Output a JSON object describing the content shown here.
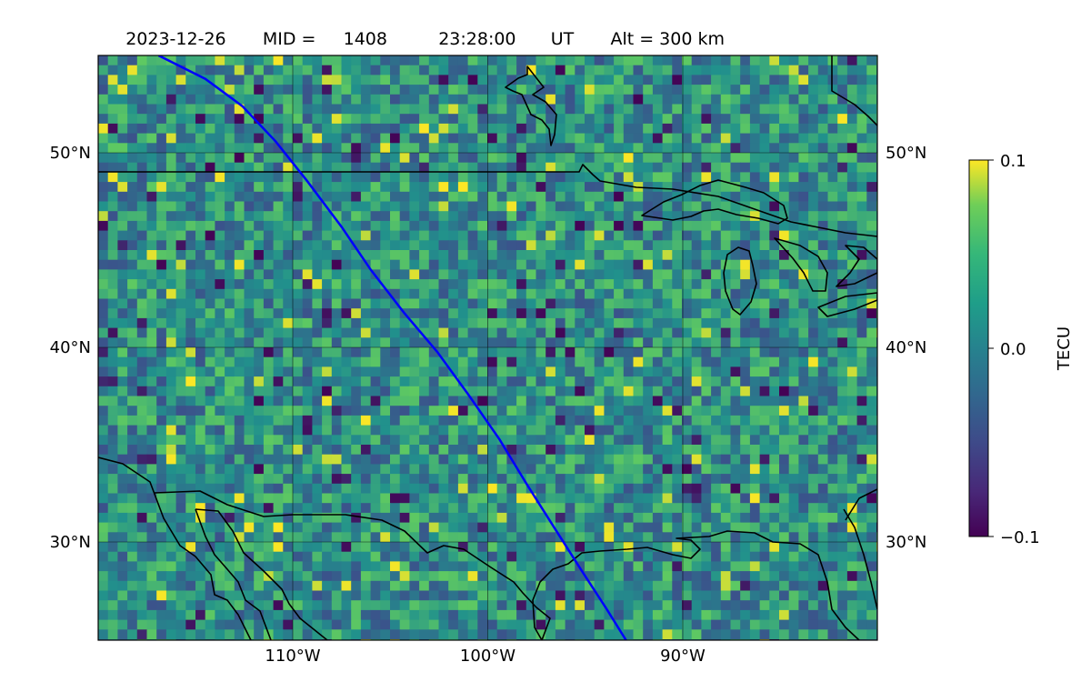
{
  "title": {
    "date": "2023-12-26",
    "mid_label": "MID =",
    "mid_value": "1408",
    "time": "23:28:00",
    "time_zone": "UT",
    "alt_label": "Alt = 300 km"
  },
  "map": {
    "projection": "lat-lon",
    "lon_range_deg": [
      -120,
      -80
    ],
    "lat_range_deg": [
      25,
      55
    ],
    "lat_ticks_left": [
      "30°N",
      "40°N",
      "50°N"
    ],
    "lat_ticks_right": [
      "30°N",
      "40°N",
      "50°N"
    ],
    "lon_ticks": [
      "110°W",
      "100°W",
      "90°W"
    ],
    "gridlines": true,
    "grid_lon": [
      -110,
      -100,
      -90
    ],
    "grid_lat": [
      30,
      40,
      50
    ]
  },
  "colorbar": {
    "label": "TECU",
    "colormap": "viridis",
    "ticks": [
      "0.1",
      "0.0",
      "−0.1"
    ],
    "vmin": -0.1,
    "vmax": 0.1
  },
  "track": {
    "color": "#0000ff",
    "points_lonlat": [
      [
        -116.9,
        55
      ],
      [
        -114.5,
        53.8
      ],
      [
        -112.6,
        52.4
      ],
      [
        -110.9,
        50.6
      ],
      [
        -109.3,
        48.6
      ],
      [
        -107.5,
        46.2
      ],
      [
        -106,
        44
      ],
      [
        -104.3,
        41.8
      ],
      [
        -102.6,
        39.8
      ],
      [
        -101,
        37.6
      ],
      [
        -99.4,
        35.3
      ],
      [
        -98,
        33
      ],
      [
        -96.6,
        30.8
      ],
      [
        -95.2,
        28.6
      ],
      [
        -93.9,
        26.6
      ],
      [
        -92.9,
        25
      ]
    ]
  },
  "colors": {
    "coastline": "#000000",
    "track": "#0000ff",
    "background_field": "#2a8b8a"
  }
}
